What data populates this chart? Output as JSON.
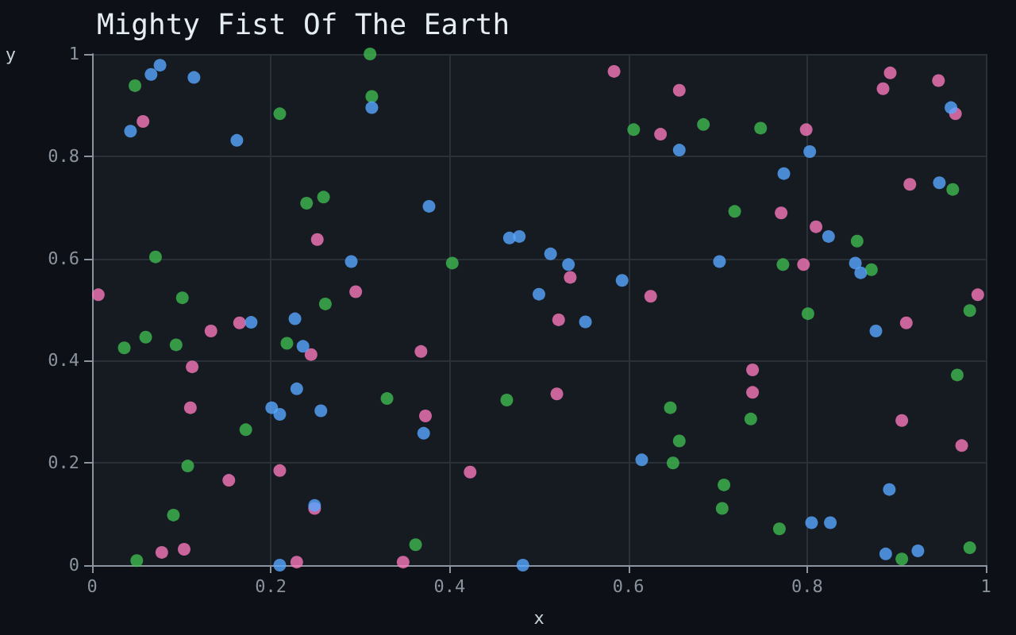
{
  "chart_data": {
    "type": "scatter",
    "title": "Mighty Fist Of The Earth",
    "xlabel": "x",
    "ylabel": "y",
    "xlim": [
      0,
      1
    ],
    "ylim": [
      0,
      1
    ],
    "xticks": [
      0,
      0.2,
      0.4,
      0.6,
      0.8,
      1
    ],
    "yticks": [
      0,
      0.2,
      0.4,
      0.6,
      0.8,
      1
    ],
    "grid": true,
    "marker": "circle",
    "series": [
      {
        "color": "#58a6ff",
        "x": [
          0.043,
          0.066,
          0.076,
          0.114,
          0.162,
          0.313,
          0.29,
          0.377,
          0.467,
          0.478,
          0.5,
          0.178,
          0.227,
          0.513,
          0.533,
          0.593,
          0.702,
          0.657,
          0.774,
          0.803,
          0.824,
          0.854,
          0.86,
          0.948,
          0.961,
          0.552,
          0.236,
          0.229,
          0.201,
          0.21,
          0.256,
          0.371,
          0.249,
          0.21,
          0.482,
          0.877,
          0.615,
          0.892,
          0.805,
          0.826,
          0.888,
          0.924
        ],
        "values": [
          0.849,
          0.96,
          0.978,
          0.954,
          0.831,
          0.895,
          0.594,
          0.702,
          0.64,
          0.643,
          0.53,
          0.475,
          0.482,
          0.609,
          0.588,
          0.557,
          0.594,
          0.812,
          0.766,
          0.809,
          0.643,
          0.591,
          0.572,
          0.748,
          0.895,
          0.476,
          0.428,
          0.345,
          0.308,
          0.295,
          0.302,
          0.258,
          0.117,
          0.0,
          0.0,
          0.458,
          0.206,
          0.148,
          0.083,
          0.083,
          0.022,
          0.028
        ]
      },
      {
        "color": "#3fb950",
        "x": [
          0.048,
          0.21,
          0.311,
          0.313,
          0.24,
          0.259,
          0.071,
          0.101,
          0.261,
          0.403,
          0.606,
          0.684,
          0.748,
          0.963,
          0.719,
          0.856,
          0.773,
          0.872,
          0.801,
          0.982,
          0.036,
          0.06,
          0.094,
          0.218,
          0.172,
          0.33,
          0.464,
          0.107,
          0.091,
          0.05,
          0.362,
          0.968,
          0.647,
          0.737,
          0.657,
          0.65,
          0.707,
          0.705,
          0.769,
          0.906,
          0.982
        ],
        "values": [
          0.938,
          0.883,
          1.0,
          0.917,
          0.708,
          0.72,
          0.603,
          0.523,
          0.511,
          0.591,
          0.852,
          0.862,
          0.855,
          0.735,
          0.692,
          0.634,
          0.588,
          0.578,
          0.492,
          0.498,
          0.425,
          0.446,
          0.431,
          0.434,
          0.265,
          0.326,
          0.323,
          0.194,
          0.098,
          0.009,
          0.04,
          0.372,
          0.308,
          0.286,
          0.243,
          0.2,
          0.157,
          0.111,
          0.071,
          0.012,
          0.034
        ]
      },
      {
        "color": "#f778ba",
        "x": [
          0.057,
          0.007,
          0.252,
          0.295,
          0.165,
          0.584,
          0.657,
          0.636,
          0.799,
          0.893,
          0.885,
          0.947,
          0.966,
          0.915,
          0.771,
          0.81,
          0.796,
          0.535,
          0.625,
          0.991,
          0.522,
          0.133,
          0.112,
          0.245,
          0.368,
          0.11,
          0.373,
          0.153,
          0.21,
          0.423,
          0.249,
          0.078,
          0.103,
          0.229,
          0.348,
          0.911,
          0.739,
          0.739,
          0.52,
          0.906,
          0.973
        ],
        "values": [
          0.868,
          0.529,
          0.637,
          0.535,
          0.474,
          0.966,
          0.929,
          0.843,
          0.852,
          0.963,
          0.932,
          0.948,
          0.883,
          0.745,
          0.689,
          0.662,
          0.588,
          0.563,
          0.526,
          0.529,
          0.48,
          0.458,
          0.388,
          0.412,
          0.418,
          0.308,
          0.292,
          0.166,
          0.185,
          0.182,
          0.111,
          0.025,
          0.031,
          0.006,
          0.006,
          0.474,
          0.382,
          0.338,
          0.335,
          0.283,
          0.234
        ]
      }
    ]
  }
}
